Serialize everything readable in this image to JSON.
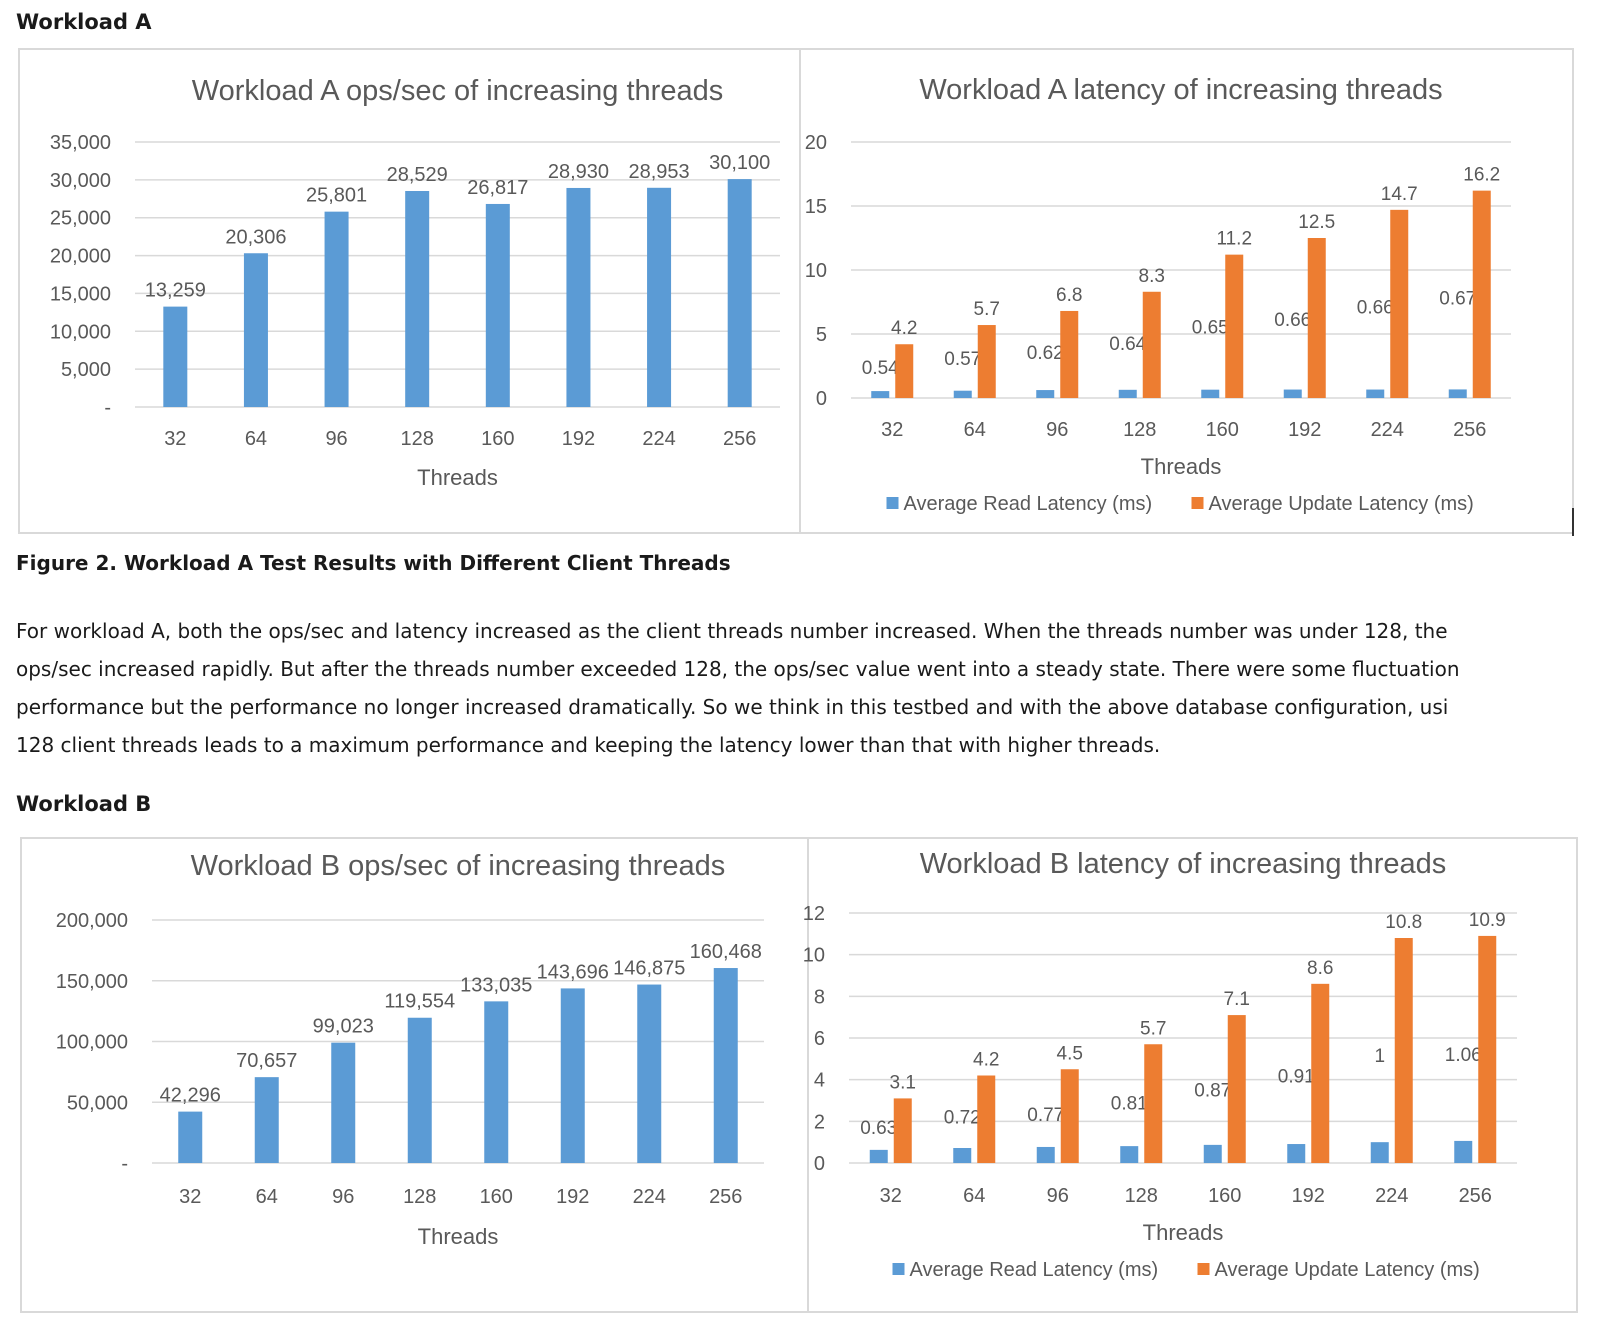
{
  "page": {
    "heading_a": "Workload A",
    "caption_a": "Figure 2. Workload A Test Results with Different Client Threads",
    "paragraph_lines": [
      "For workload A, both the ops/sec and latency increased as the client threads number increased. When the threads number was under 128, the",
      "ops/sec increased rapidly. But after the threads number exceeded 128, the ops/sec value went into a steady state. There were some fluctuation",
      "performance but the performance no longer increased dramatically. So we think in this testbed and with the above database configuration, usi",
      "128 client threads leads to a maximum performance and keeping the latency lower than that with higher threads."
    ],
    "heading_b": "Workload B"
  },
  "colors": {
    "ops_bar": "#5b9bd5",
    "read_bar": "#5b9bd5",
    "update_bar": "#ed7d31",
    "grid": "#d9d9d9",
    "text": "#595959"
  },
  "chart_data": [
    {
      "id": "a-ops",
      "type": "bar",
      "title": "Workload A ops/sec of increasing threads",
      "xlabel": "Threads",
      "ylabel": "",
      "categories": [
        "32",
        "64",
        "96",
        "128",
        "160",
        "192",
        "224",
        "256"
      ],
      "yticks": [
        "-",
        "5,000",
        "10,000",
        "15,000",
        "20,000",
        "25,000",
        "30,000",
        "35,000"
      ],
      "ylim": [
        0,
        35000
      ],
      "grid": true,
      "series": [
        {
          "values": [
            13259,
            20306,
            25801,
            28529,
            26817,
            28930,
            28953,
            30100
          ],
          "labels": [
            "13,259",
            "20,306",
            "25,801",
            "28,529",
            "26,817",
            "28,930",
            "28,953",
            "30,100"
          ]
        }
      ]
    },
    {
      "id": "a-lat",
      "type": "bar",
      "title": "Workload A latency of increasing threads",
      "xlabel": "Threads",
      "ylabel": "",
      "categories": [
        "32",
        "64",
        "96",
        "128",
        "160",
        "192",
        "224",
        "256"
      ],
      "yticks": [
        "0",
        "5",
        "10",
        "15",
        "20"
      ],
      "ylim": [
        0,
        20
      ],
      "grid": true,
      "legend": "bottom",
      "series": [
        {
          "name": "Average Read Latency (ms)",
          "values": [
            0.54,
            0.57,
            0.62,
            0.64,
            0.65,
            0.66,
            0.66,
            0.67
          ],
          "labels": [
            "0.54",
            "0.57",
            "0.62",
            "0.64",
            "0.65",
            "0.66",
            "0.66",
            "0.67"
          ]
        },
        {
          "name": "Average Update Latency (ms)",
          "values": [
            4.2,
            5.7,
            6.8,
            8.3,
            11.2,
            12.5,
            14.7,
            16.2
          ],
          "labels": [
            "4.2",
            "5.7",
            "6.8",
            "8.3",
            "11.2",
            "12.5",
            "14.7",
            "16.2"
          ]
        }
      ]
    },
    {
      "id": "b-ops",
      "type": "bar",
      "title": "Workload B ops/sec of increasing threads",
      "xlabel": "Threads",
      "ylabel": "",
      "categories": [
        "32",
        "64",
        "96",
        "128",
        "160",
        "192",
        "224",
        "256"
      ],
      "yticks": [
        "-",
        "50,000",
        "100,000",
        "150,000",
        "200,000"
      ],
      "ylim": [
        0,
        200000
      ],
      "grid": true,
      "series": [
        {
          "values": [
            42296,
            70657,
            99023,
            119554,
            133035,
            143696,
            146875,
            160468
          ],
          "labels": [
            "42,296",
            "70,657",
            "99,023",
            "119,554",
            "133,035",
            "143,696",
            "146,875",
            "160,468"
          ]
        }
      ]
    },
    {
      "id": "b-lat",
      "type": "bar",
      "title": "Workload B latency of increasing threads",
      "xlabel": "Threads",
      "ylabel": "",
      "categories": [
        "32",
        "64",
        "96",
        "128",
        "160",
        "192",
        "224",
        "256"
      ],
      "yticks": [
        "0",
        "2",
        "4",
        "6",
        "8",
        "10",
        "12"
      ],
      "ylim": [
        0,
        12
      ],
      "grid": true,
      "legend": "bottom",
      "series": [
        {
          "name": "Average Read Latency (ms)",
          "values": [
            0.63,
            0.72,
            0.77,
            0.81,
            0.87,
            0.91,
            1,
            1.06
          ],
          "labels": [
            "0.63",
            "0.72",
            "0.77",
            "0.81",
            "0.87",
            "0.91",
            "1",
            "1.06"
          ]
        },
        {
          "name": "Average Update Latency (ms)",
          "values": [
            3.1,
            4.2,
            4.5,
            5.7,
            7.1,
            8.6,
            10.8,
            10.9
          ],
          "labels": [
            "3.1",
            "4.2",
            "4.5",
            "5.7",
            "7.1",
            "8.6",
            "10.8",
            "10.9"
          ]
        }
      ]
    }
  ]
}
